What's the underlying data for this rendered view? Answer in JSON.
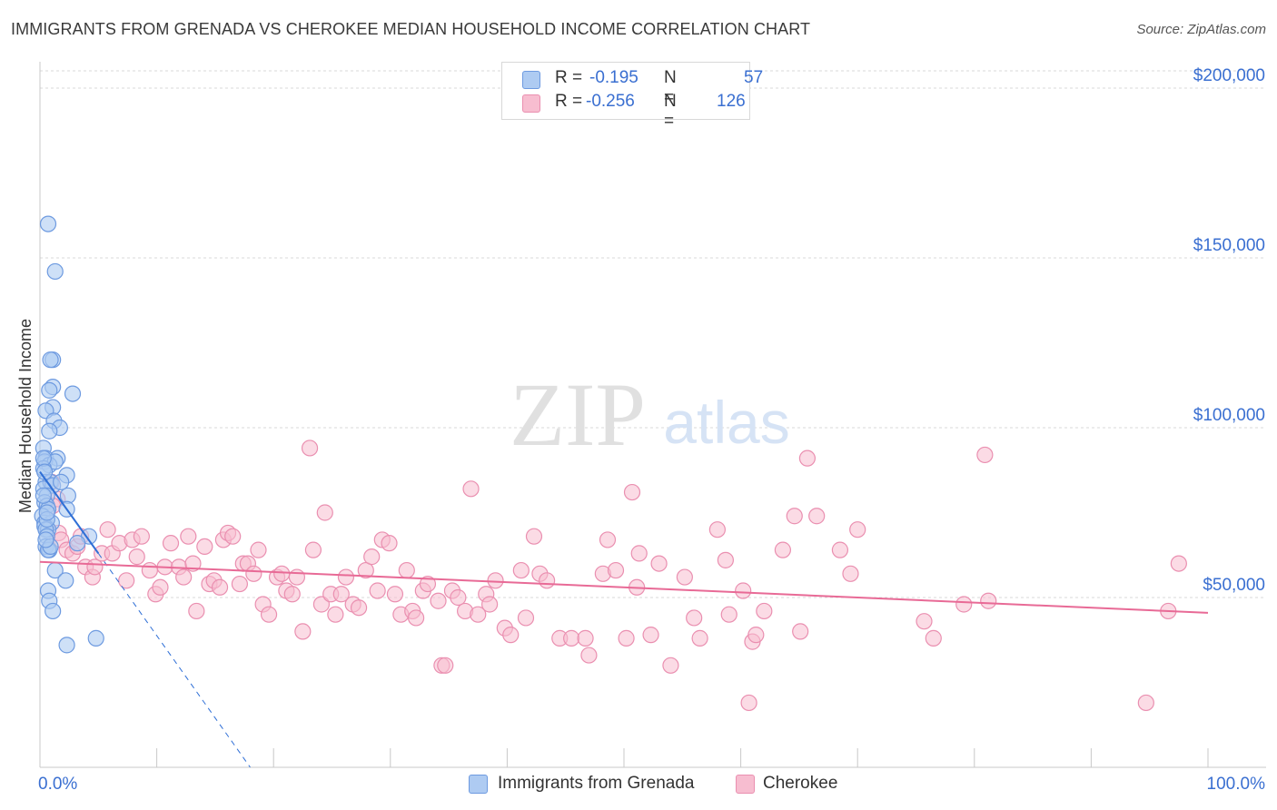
{
  "header": {
    "title": "IMMIGRANTS FROM GRENADA VS CHEROKEE MEDIAN HOUSEHOLD INCOME CORRELATION CHART",
    "source": "Source: ZipAtlas.com"
  },
  "watermark": {
    "zip": "ZIP",
    "atlas": "atlas"
  },
  "legend_top": {
    "rows": [
      {
        "r_label": "R =",
        "r_value": "-0.195",
        "n_label": "N =",
        "n_value": "57"
      },
      {
        "r_label": "R =",
        "r_value": "-0.256",
        "n_label": "N =",
        "n_value": "126"
      }
    ]
  },
  "legend_bottom": {
    "items": [
      {
        "label": "Immigrants from Grenada"
      },
      {
        "label": "Cherokee"
      }
    ]
  },
  "colors": {
    "blue_fill": "#aecbf2",
    "blue_stroke": "#6d9ae0",
    "blue_line": "#2f6fd6",
    "pink_fill": "#f7bdd0",
    "pink_stroke": "#ea8fb0",
    "pink_line": "#e86a96",
    "axis_label": "#3a6fd1",
    "grid": "#d9d9d9"
  },
  "chart_data": {
    "type": "scatter",
    "title": "IMMIGRANTS FROM GRENADA VS CHEROKEE MEDIAN HOUSEHOLD INCOME CORRELATION CHART",
    "xlabel": "",
    "ylabel": "Median Household Income",
    "xlim": [
      0,
      100
    ],
    "ylim": [
      0,
      210000
    ],
    "x_tick_labels": [
      "0.0%",
      "100.0%"
    ],
    "y_ticks": [
      50000,
      100000,
      150000,
      200000
    ],
    "y_tick_labels": [
      "$50,000",
      "$100,000",
      "$150,000",
      "$200,000"
    ],
    "grid": true,
    "series": [
      {
        "name": "Immigrants from Grenada",
        "r": -0.195,
        "n": 57,
        "points": [
          [
            0.7,
            160000
          ],
          [
            1.3,
            146000
          ],
          [
            1.1,
            120000
          ],
          [
            0.9,
            120000
          ],
          [
            1.1,
            112000
          ],
          [
            0.8,
            111000
          ],
          [
            2.8,
            110000
          ],
          [
            1.1,
            106000
          ],
          [
            0.5,
            105000
          ],
          [
            1.2,
            102000
          ],
          [
            1.7,
            100000
          ],
          [
            0.8,
            99000
          ],
          [
            0.3,
            94000
          ],
          [
            0.5,
            91000
          ],
          [
            1.5,
            91000
          ],
          [
            0.4,
            90000
          ],
          [
            0.8,
            89000
          ],
          [
            1.3,
            90000
          ],
          [
            0.3,
            88000
          ],
          [
            2.3,
            86000
          ],
          [
            0.5,
            84000
          ],
          [
            0.9,
            84000
          ],
          [
            1.1,
            83000
          ],
          [
            0.3,
            82000
          ],
          [
            0.6,
            80000
          ],
          [
            2.4,
            80000
          ],
          [
            0.4,
            78000
          ],
          [
            0.6,
            77000
          ],
          [
            0.7,
            76000
          ],
          [
            2.3,
            76000
          ],
          [
            0.2,
            74000
          ],
          [
            0.4,
            72000
          ],
          [
            1.0,
            72000
          ],
          [
            0.4,
            71000
          ],
          [
            0.7,
            70000
          ],
          [
            0.5,
            70000
          ],
          [
            0.6,
            68000
          ],
          [
            4.2,
            68000
          ],
          [
            3.2,
            66000
          ],
          [
            0.5,
            65000
          ],
          [
            0.8,
            64000
          ],
          [
            0.7,
            64000
          ],
          [
            1.3,
            58000
          ],
          [
            2.2,
            55000
          ],
          [
            0.7,
            52000
          ],
          [
            0.8,
            49000
          ],
          [
            1.1,
            46000
          ],
          [
            4.8,
            38000
          ],
          [
            2.3,
            36000
          ],
          [
            0.3,
            91000
          ],
          [
            0.4,
            87000
          ],
          [
            0.6,
            73000
          ],
          [
            0.9,
            65000
          ],
          [
            0.5,
            67000
          ],
          [
            1.8,
            84000
          ],
          [
            0.3,
            80000
          ],
          [
            0.6,
            75000
          ]
        ],
        "trend_solid": [
          [
            0,
            87000
          ],
          [
            5,
            63000
          ]
        ],
        "trend_dashed": [
          [
            5,
            63000
          ],
          [
            18,
            0
          ]
        ]
      },
      {
        "name": "Cherokee",
        "r": -0.256,
        "n": 126,
        "points": [
          [
            1.0,
            84000
          ],
          [
            1.5,
            79000
          ],
          [
            1.1,
            77000
          ],
          [
            1.6,
            69000
          ],
          [
            1.8,
            67000
          ],
          [
            2.3,
            64000
          ],
          [
            2.8,
            63000
          ],
          [
            3.2,
            65000
          ],
          [
            3.9,
            59000
          ],
          [
            4.5,
            56000
          ],
          [
            4.7,
            59000
          ],
          [
            5.3,
            63000
          ],
          [
            5.8,
            70000
          ],
          [
            6.2,
            63000
          ],
          [
            6.8,
            66000
          ],
          [
            7.4,
            55000
          ],
          [
            7.9,
            67000
          ],
          [
            8.3,
            62000
          ],
          [
            8.7,
            68000
          ],
          [
            9.4,
            58000
          ],
          [
            9.9,
            51000
          ],
          [
            10.3,
            53000
          ],
          [
            10.7,
            59000
          ],
          [
            11.2,
            66000
          ],
          [
            11.9,
            59000
          ],
          [
            12.3,
            56000
          ],
          [
            12.7,
            68000
          ],
          [
            13.1,
            60000
          ],
          [
            13.4,
            46000
          ],
          [
            14.1,
            65000
          ],
          [
            14.5,
            54000
          ],
          [
            14.9,
            55000
          ],
          [
            15.4,
            53000
          ],
          [
            15.7,
            67000
          ],
          [
            16.1,
            69000
          ],
          [
            16.5,
            68000
          ],
          [
            17.1,
            54000
          ],
          [
            17.4,
            60000
          ],
          [
            17.8,
            60000
          ],
          [
            18.3,
            57000
          ],
          [
            18.7,
            64000
          ],
          [
            19.1,
            48000
          ],
          [
            19.6,
            45000
          ],
          [
            20.3,
            56000
          ],
          [
            20.7,
            57000
          ],
          [
            21.1,
            52000
          ],
          [
            21.6,
            51000
          ],
          [
            22.0,
            56000
          ],
          [
            22.5,
            40000
          ],
          [
            23.1,
            94000
          ],
          [
            23.4,
            64000
          ],
          [
            24.1,
            48000
          ],
          [
            24.4,
            75000
          ],
          [
            24.9,
            51000
          ],
          [
            25.3,
            45000
          ],
          [
            25.8,
            51000
          ],
          [
            26.2,
            56000
          ],
          [
            26.8,
            48000
          ],
          [
            27.3,
            47000
          ],
          [
            27.9,
            58000
          ],
          [
            28.4,
            62000
          ],
          [
            28.9,
            52000
          ],
          [
            29.3,
            67000
          ],
          [
            29.9,
            66000
          ],
          [
            30.4,
            51000
          ],
          [
            30.9,
            45000
          ],
          [
            31.4,
            58000
          ],
          [
            31.9,
            46000
          ],
          [
            32.2,
            44000
          ],
          [
            32.8,
            52000
          ],
          [
            33.2,
            54000
          ],
          [
            34.1,
            49000
          ],
          [
            34.4,
            30000
          ],
          [
            34.7,
            30000
          ],
          [
            35.3,
            52000
          ],
          [
            35.8,
            50000
          ],
          [
            36.4,
            46000
          ],
          [
            36.9,
            82000
          ],
          [
            37.5,
            45000
          ],
          [
            38.2,
            51000
          ],
          [
            38.5,
            48000
          ],
          [
            39.0,
            55000
          ],
          [
            39.8,
            41000
          ],
          [
            40.3,
            39000
          ],
          [
            41.2,
            58000
          ],
          [
            41.6,
            44000
          ],
          [
            42.3,
            68000
          ],
          [
            42.8,
            57000
          ],
          [
            43.4,
            55000
          ],
          [
            44.5,
            38000
          ],
          [
            45.5,
            38000
          ],
          [
            46.7,
            38000
          ],
          [
            47.0,
            33000
          ],
          [
            48.2,
            57000
          ],
          [
            48.6,
            67000
          ],
          [
            49.3,
            58000
          ],
          [
            50.2,
            38000
          ],
          [
            50.7,
            81000
          ],
          [
            51.1,
            53000
          ],
          [
            51.3,
            63000
          ],
          [
            52.3,
            39000
          ],
          [
            53.0,
            60000
          ],
          [
            54.0,
            30000
          ],
          [
            55.2,
            56000
          ],
          [
            56.0,
            44000
          ],
          [
            56.5,
            38000
          ],
          [
            58.0,
            70000
          ],
          [
            58.7,
            61000
          ],
          [
            59.0,
            45000
          ],
          [
            60.2,
            52000
          ],
          [
            60.7,
            19000
          ],
          [
            61.0,
            37000
          ],
          [
            61.3,
            39000
          ],
          [
            62.0,
            46000
          ],
          [
            63.6,
            64000
          ],
          [
            64.6,
            74000
          ],
          [
            65.1,
            40000
          ],
          [
            65.7,
            91000
          ],
          [
            66.5,
            74000
          ],
          [
            68.5,
            64000
          ],
          [
            69.4,
            57000
          ],
          [
            70.0,
            70000
          ],
          [
            75.7,
            43000
          ],
          [
            76.5,
            38000
          ],
          [
            79.1,
            48000
          ],
          [
            80.9,
            92000
          ],
          [
            81.2,
            49000
          ],
          [
            94.7,
            19000
          ],
          [
            96.6,
            46000
          ],
          [
            97.5,
            60000
          ],
          [
            3.5,
            68000
          ]
        ],
        "trend_solid": [
          [
            0,
            60500
          ],
          [
            100,
            45500
          ]
        ]
      }
    ]
  }
}
